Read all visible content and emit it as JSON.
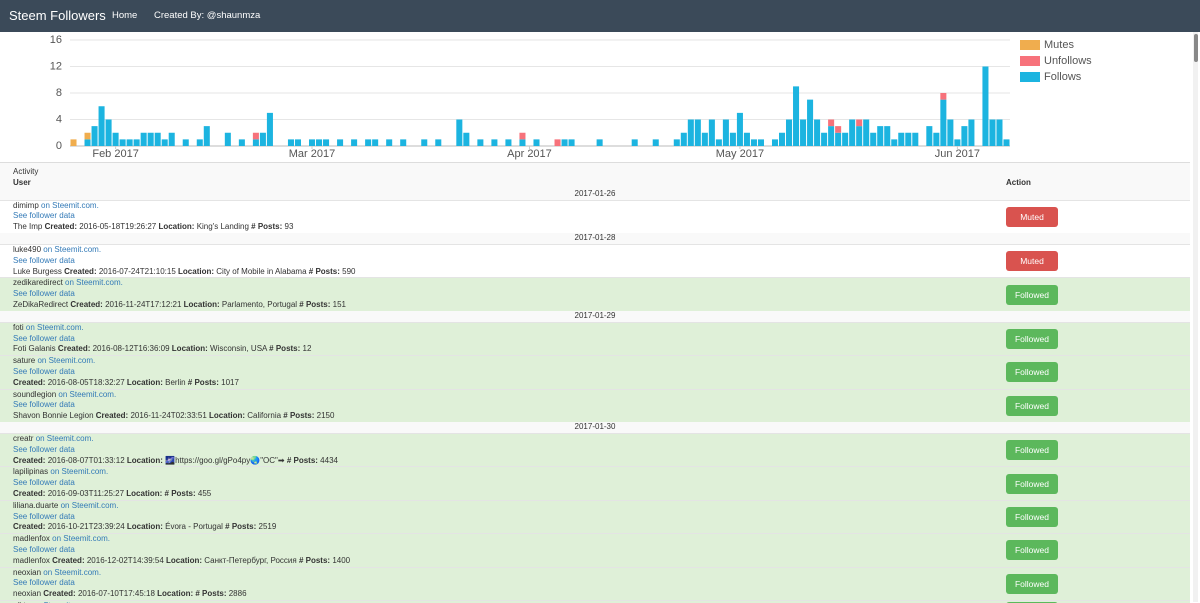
{
  "navbar": {
    "brand": "Steem Followers",
    "links": [
      "Home",
      "Created By: @shaunmza"
    ]
  },
  "chart_data": {
    "type": "bar",
    "stacked": true,
    "categories": [
      null,
      null,
      null,
      null,
      null,
      null,
      null,
      null,
      null,
      null,
      null,
      null,
      null,
      null,
      null,
      null,
      null,
      null,
      null,
      null,
      null,
      null,
      null,
      null,
      null,
      null,
      null,
      null,
      null,
      null,
      null,
      null,
      null,
      null,
      null,
      null,
      null,
      null,
      null,
      null,
      null,
      null,
      null,
      null,
      null,
      null,
      null,
      null,
      null,
      null,
      null,
      null,
      null,
      null,
      null,
      null,
      null,
      null,
      null,
      null,
      null,
      null,
      null,
      null,
      null,
      null,
      null,
      null,
      null,
      null,
      null,
      null,
      null,
      null,
      null,
      null,
      null,
      null,
      null,
      null,
      null,
      null,
      null,
      null,
      null,
      null,
      null,
      null,
      null,
      null,
      null,
      null,
      null,
      null,
      null,
      null,
      null,
      null,
      null,
      null,
      null,
      null,
      null,
      null,
      null,
      null,
      null,
      null,
      null,
      null,
      null,
      null,
      null,
      null,
      null,
      null,
      null,
      null,
      null,
      null,
      null,
      null,
      null,
      null,
      null,
      null,
      null,
      null,
      null,
      null,
      null,
      null,
      null,
      null
    ],
    "series": [
      {
        "name": "Mutes",
        "color": "#f0ad4e",
        "values": [
          1,
          0,
          1,
          0,
          0,
          0,
          0,
          0,
          0,
          0,
          0,
          0,
          0,
          0,
          0,
          0,
          0,
          0,
          0,
          0,
          0,
          0,
          0,
          0,
          0,
          0,
          0,
          0,
          0,
          0,
          0,
          0,
          0,
          0,
          0,
          0,
          0,
          0,
          0,
          0,
          0,
          0,
          0,
          0,
          0,
          0,
          0,
          0,
          0,
          0,
          0,
          0,
          0,
          0,
          0,
          0,
          0,
          0,
          0,
          0,
          0,
          0,
          0,
          0,
          0,
          0,
          0,
          0,
          0,
          0,
          0,
          0,
          0,
          0,
          0,
          0,
          0,
          0,
          0,
          0,
          0,
          0,
          0,
          0,
          0,
          0,
          0,
          0,
          0,
          0,
          0,
          0,
          0,
          0,
          0,
          0,
          0,
          0,
          0,
          0,
          0,
          0,
          0,
          0,
          0,
          0,
          0,
          0,
          0,
          0,
          0,
          0,
          0,
          0,
          0,
          0,
          0,
          0,
          0,
          0,
          0,
          0,
          0,
          0,
          0,
          0,
          0,
          0,
          0,
          0,
          0,
          0,
          0,
          0
        ]
      },
      {
        "name": "Unfollows",
        "color": "#f7727b",
        "values": [
          0,
          0,
          0,
          0,
          0,
          0,
          0,
          0,
          0,
          0,
          0,
          0,
          0,
          0,
          0,
          0,
          0,
          0,
          0,
          0,
          0,
          0,
          0,
          0,
          0,
          0,
          1,
          0,
          0,
          0,
          0,
          0,
          0,
          0,
          0,
          0,
          0,
          0,
          0,
          0,
          0,
          0,
          0,
          0,
          0,
          0,
          0,
          0,
          0,
          0,
          0,
          0,
          0,
          0,
          0,
          0,
          0,
          0,
          0,
          0,
          0,
          0,
          0,
          0,
          1,
          0,
          0,
          0,
          0,
          1,
          0,
          0,
          0,
          0,
          0,
          0,
          0,
          0,
          0,
          0,
          0,
          0,
          0,
          0,
          0,
          0,
          0,
          0,
          0,
          0,
          0,
          0,
          0,
          0,
          0,
          0,
          0,
          0,
          0,
          0,
          0,
          0,
          0,
          0,
          0,
          0,
          0,
          0,
          1,
          1,
          0,
          0,
          1,
          0,
          0,
          0,
          0,
          0,
          0,
          0,
          0,
          0,
          0,
          0,
          1,
          0,
          0,
          0,
          0,
          0,
          0,
          0,
          0,
          0
        ]
      },
      {
        "name": "Follows",
        "color": "#1cb4e0",
        "values": [
          0,
          0,
          1,
          3,
          6,
          4,
          2,
          1,
          1,
          1,
          2,
          2,
          2,
          1,
          2,
          0,
          1,
          0,
          1,
          3,
          0,
          0,
          2,
          0,
          1,
          0,
          1,
          2,
          5,
          0,
          0,
          1,
          1,
          0,
          1,
          1,
          1,
          0,
          1,
          0,
          1,
          0,
          1,
          1,
          0,
          1,
          0,
          1,
          0,
          0,
          1,
          0,
          1,
          0,
          0,
          4,
          2,
          0,
          1,
          0,
          1,
          0,
          1,
          0,
          1,
          0,
          1,
          0,
          0,
          0,
          1,
          1,
          0,
          0,
          0,
          1,
          0,
          0,
          0,
          0,
          1,
          0,
          0,
          1,
          0,
          0,
          1,
          2,
          4,
          4,
          2,
          4,
          1,
          4,
          2,
          5,
          2,
          1,
          1,
          0,
          1,
          2,
          4,
          9,
          4,
          7,
          4,
          2,
          3,
          2,
          2,
          4,
          3,
          4,
          2,
          3,
          3,
          1,
          2,
          2,
          2,
          0,
          3,
          2,
          7,
          4,
          1,
          3,
          4,
          0,
          12,
          4,
          4,
          1
        ]
      }
    ],
    "xticks": [
      {
        "value": 6,
        "label": "Feb 2017"
      },
      {
        "value": 34,
        "label": "Mar 2017"
      },
      {
        "value": 65,
        "label": "Apr 2017"
      },
      {
        "value": 95,
        "label": "May 2017"
      },
      {
        "value": 126,
        "label": "Jun 2017"
      }
    ],
    "ylim": [
      0,
      16
    ],
    "yticks": [
      0,
      4,
      8,
      12,
      16
    ],
    "grid": true,
    "legend": "right"
  },
  "table": {
    "caption": "Activity",
    "columns": [
      "User",
      "Action"
    ],
    "site_link": "on Steemit.com.",
    "data_link": "See follower data",
    "created_label": "Created:",
    "location_label": "Location:",
    "posts_label": "# Posts:",
    "groups": [
      {
        "date": "2017-01-26",
        "rows": [
          {
            "user": "dimimp",
            "name": "The Imp",
            "created": "2016-05-18T19:26:27",
            "location": "King's Landing",
            "posts": 93,
            "action": "Muted",
            "button_color": "#d9534f"
          }
        ]
      },
      {
        "date": "2017-01-28",
        "rows": [
          {
            "user": "luke490",
            "name": "Luke Burgess",
            "created": "2016-07-24T21:10:15",
            "location": "City of Mobile in Alabama",
            "posts": 590,
            "action": "Muted",
            "button_color": "#d9534f"
          },
          {
            "user": "zedikaredirect",
            "name": "ZeDikaRedirect",
            "created": "2016-11-24T17:12:21",
            "location": "Parlamento, Portugal",
            "posts": 151,
            "action": "Followed",
            "button_color": "#5cb85c",
            "row_color": "#dff0d8"
          }
        ]
      },
      {
        "date": "2017-01-29",
        "rows": [
          {
            "user": "foti",
            "name": "Foti Galanis",
            "created": "2016-08-12T16:36:09",
            "location": "Wisconsin, USA",
            "posts": 12,
            "action": "Followed",
            "button_color": "#5cb85c",
            "row_color": "#dff0d8"
          },
          {
            "user": "sature",
            "created": "2016-08-05T18:32:27",
            "location": "Berlin",
            "posts": 1017,
            "action": "Followed",
            "button_color": "#5cb85c",
            "row_color": "#dff0d8"
          },
          {
            "user": "soundlegion",
            "name": "Shavon Bonnie Legion",
            "created": "2016-11-24T02:33:51",
            "location": "California",
            "posts": 2150,
            "action": "Followed",
            "button_color": "#5cb85c",
            "row_color": "#dff0d8"
          }
        ]
      },
      {
        "date": "2017-01-30",
        "rows": [
          {
            "user": "creatr",
            "created": "2016-08-07T01:33:12",
            "location": "🌌https://goo.gl/gPo4py🌏\"OC\"➡",
            "posts": 4434,
            "action": "Followed",
            "button_color": "#5cb85c",
            "row_color": "#dff0d8"
          },
          {
            "user": "lapilipinas",
            "created": "2016-09-03T11:25:27",
            "posts": 455,
            "action": "Followed",
            "button_color": "#5cb85c",
            "row_color": "#dff0d8"
          },
          {
            "user": "liliana.duarte",
            "created": "2016-10-21T23:39:24",
            "location": "Évora - Portugal",
            "posts": 2519,
            "action": "Followed",
            "button_color": "#5cb85c",
            "row_color": "#dff0d8"
          },
          {
            "user": "madlenfox",
            "name": "madlenfox",
            "created": "2016-12-02T14:39:54",
            "location": "Санкт-Петербург, Россия",
            "posts": 1400,
            "action": "Followed",
            "button_color": "#5cb85c",
            "row_color": "#dff0d8"
          },
          {
            "user": "neoxian",
            "name": "neoxian",
            "created": "2016-07-10T17:45:18",
            "posts": 2886,
            "action": "Followed",
            "button_color": "#5cb85c",
            "row_color": "#dff0d8"
          },
          {
            "user": "pikto",
            "action": "Followed",
            "button_color": "#5cb85c",
            "row_color": "#dff0d8"
          }
        ]
      }
    ]
  }
}
